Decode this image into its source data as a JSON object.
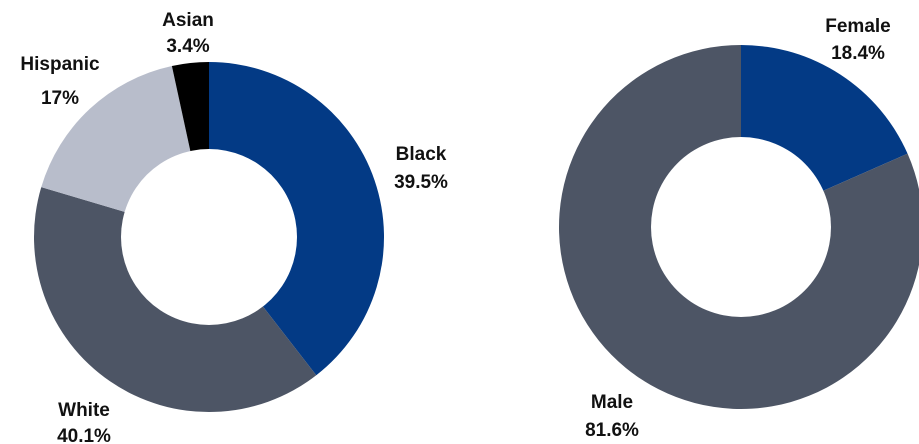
{
  "chart_data": [
    {
      "type": "pie",
      "variant": "donut",
      "title": "",
      "categories": [
        "Black",
        "White",
        "Hispanic",
        "Asian"
      ],
      "values": [
        39.5,
        40.1,
        17,
        3.4
      ],
      "value_labels": [
        "39.5%",
        "40.1%",
        "17%",
        "3.4%"
      ],
      "colors": [
        "#033a85",
        "#4d5565",
        "#b8bdcb",
        "#000000"
      ]
    },
    {
      "type": "pie",
      "variant": "donut",
      "title": "",
      "categories": [
        "Female",
        "Male"
      ],
      "values": [
        18.4,
        81.6
      ],
      "value_labels": [
        "18.4%",
        "81.6%"
      ],
      "colors": [
        "#033a85",
        "#4d5565"
      ]
    }
  ]
}
